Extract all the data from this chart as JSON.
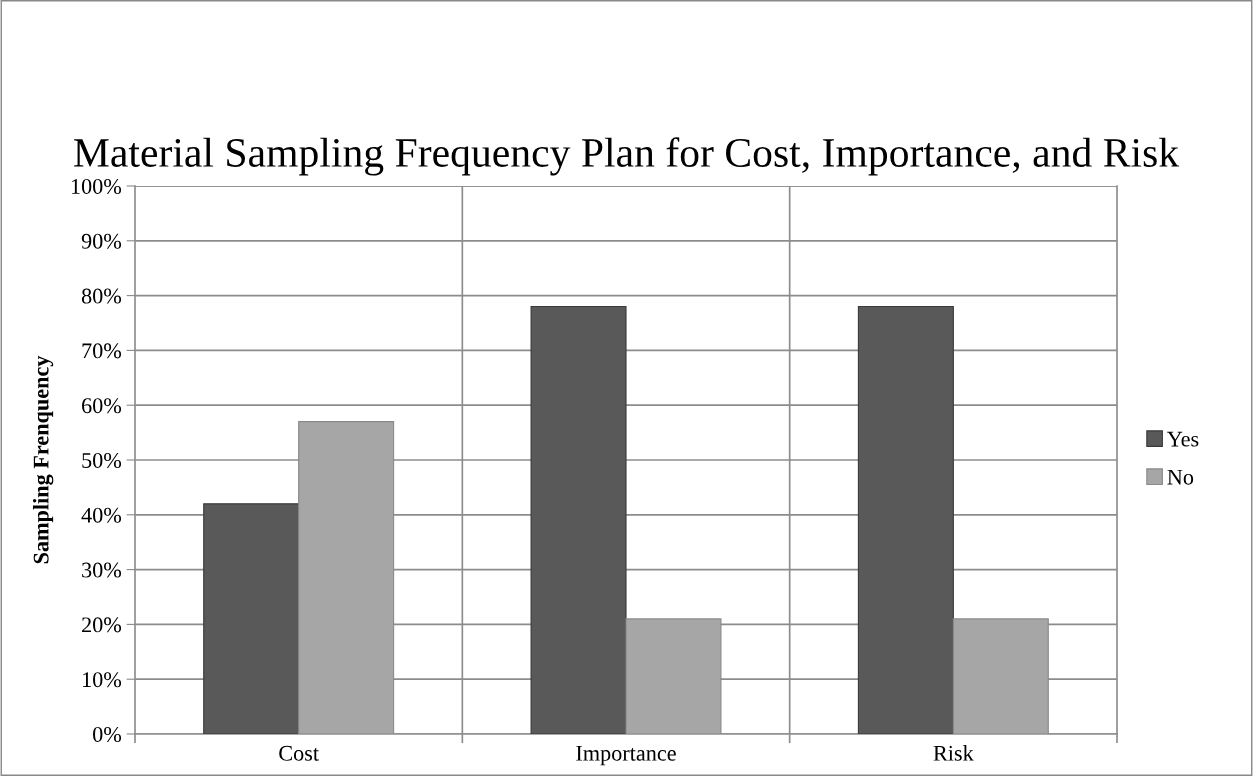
{
  "chart_data": {
    "type": "bar",
    "title": "Material Sampling Frequency Plan for Cost, Importance, and Risk",
    "ylabel": "Sampling Frenquency",
    "categories": [
      "Cost",
      "Importance",
      "Risk"
    ],
    "series": [
      {
        "name": "Yes",
        "color": "#595959",
        "values": [
          42,
          78,
          78
        ]
      },
      {
        "name": "No",
        "color": "#a6a6a6",
        "values": [
          57,
          21,
          21
        ]
      }
    ],
    "ylim": [
      0,
      100
    ],
    "yticks": [
      {
        "value": 0,
        "label": "0%"
      },
      {
        "value": 10,
        "label": "10%"
      },
      {
        "value": 20,
        "label": "20%"
      },
      {
        "value": 30,
        "label": "30%"
      },
      {
        "value": 40,
        "label": "40%"
      },
      {
        "value": 50,
        "label": "50%"
      },
      {
        "value": 60,
        "label": "60%"
      },
      {
        "value": 70,
        "label": "70%"
      },
      {
        "value": 80,
        "label": "80%"
      },
      {
        "value": 90,
        "label": "90%"
      },
      {
        "value": 100,
        "label": "100%"
      }
    ],
    "grid": true,
    "legend": "right"
  }
}
